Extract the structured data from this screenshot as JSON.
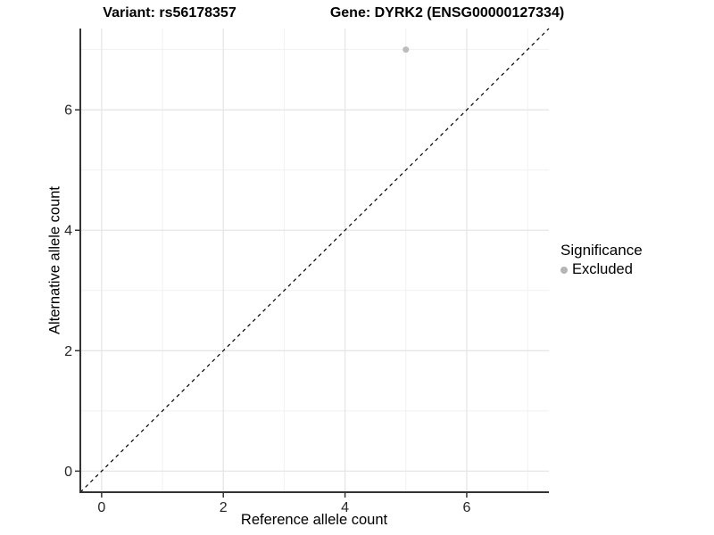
{
  "titles": {
    "variant": "Variant: rs56178357",
    "gene": "Gene: DYRK2 (ENSG00000127334)"
  },
  "chart_data": {
    "type": "scatter",
    "title_left": "Variant: rs56178357",
    "title_right": "Gene: DYRK2 (ENSG00000127334)",
    "xlabel": "Reference allele count",
    "ylabel": "Alternative allele count",
    "xlim": [
      -0.35,
      7.35
    ],
    "ylim": [
      -0.35,
      7.35
    ],
    "x_major_ticks": [
      0,
      2,
      4,
      6
    ],
    "y_major_ticks": [
      0,
      2,
      4,
      6
    ],
    "x_minor_ticks": [
      1,
      3,
      5,
      7
    ],
    "y_minor_ticks": [
      1,
      3,
      5,
      7
    ],
    "grid": true,
    "points": [
      {
        "x": 5,
        "y": 7,
        "series": "Excluded"
      }
    ],
    "reference_line": {
      "type": "identity",
      "style": "dashed",
      "color": "#000000"
    },
    "legend": {
      "title": "Significance",
      "position": "right",
      "entries": [
        {
          "label": "Excluded",
          "color": "#b5b5b5"
        }
      ]
    },
    "colors": {
      "point": "#bcbcbc",
      "grid_major": "#e6e6e6",
      "grid_minor": "#f1f1f1",
      "axis_line": "#333333",
      "tick_label": "#262626"
    }
  }
}
